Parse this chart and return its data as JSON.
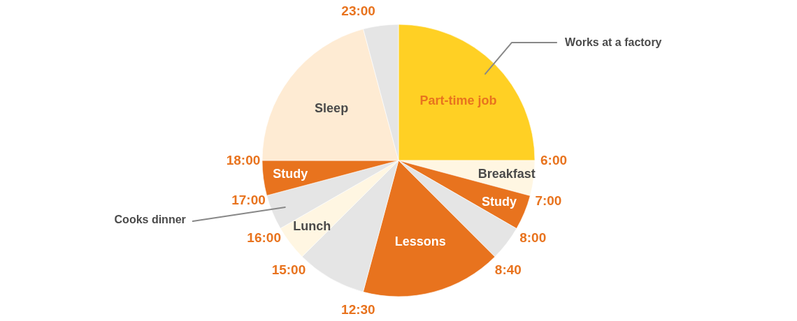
{
  "chart_data": {
    "type": "pie",
    "categories": [
      "Part-time job",
      "Breakfast",
      "Study",
      null,
      "Lessons",
      null,
      "Lunch",
      null,
      "Study",
      "Sleep",
      null
    ],
    "values": [
      25,
      4.17,
      4.17,
      4.17,
      16.67,
      8.33,
      4.17,
      4.17,
      4.16,
      20.83,
      4.16
    ],
    "colors": [
      "#ffd024",
      "#fff6e2",
      "#e8731e",
      "#e5e5e5",
      "#e8731e",
      "#e5e5e5",
      "#fff6e2",
      "#e5e5e5",
      "#e8731e",
      "#feebd3",
      "#e5e5e5"
    ],
    "annotations": [
      "6:00",
      "7:00",
      "8:00",
      "8:40",
      "12:30",
      "15:00",
      "16:00",
      "17:00",
      "18:00",
      "23:00",
      "Works at a factory",
      "Cooks dinner"
    ]
  }
}
